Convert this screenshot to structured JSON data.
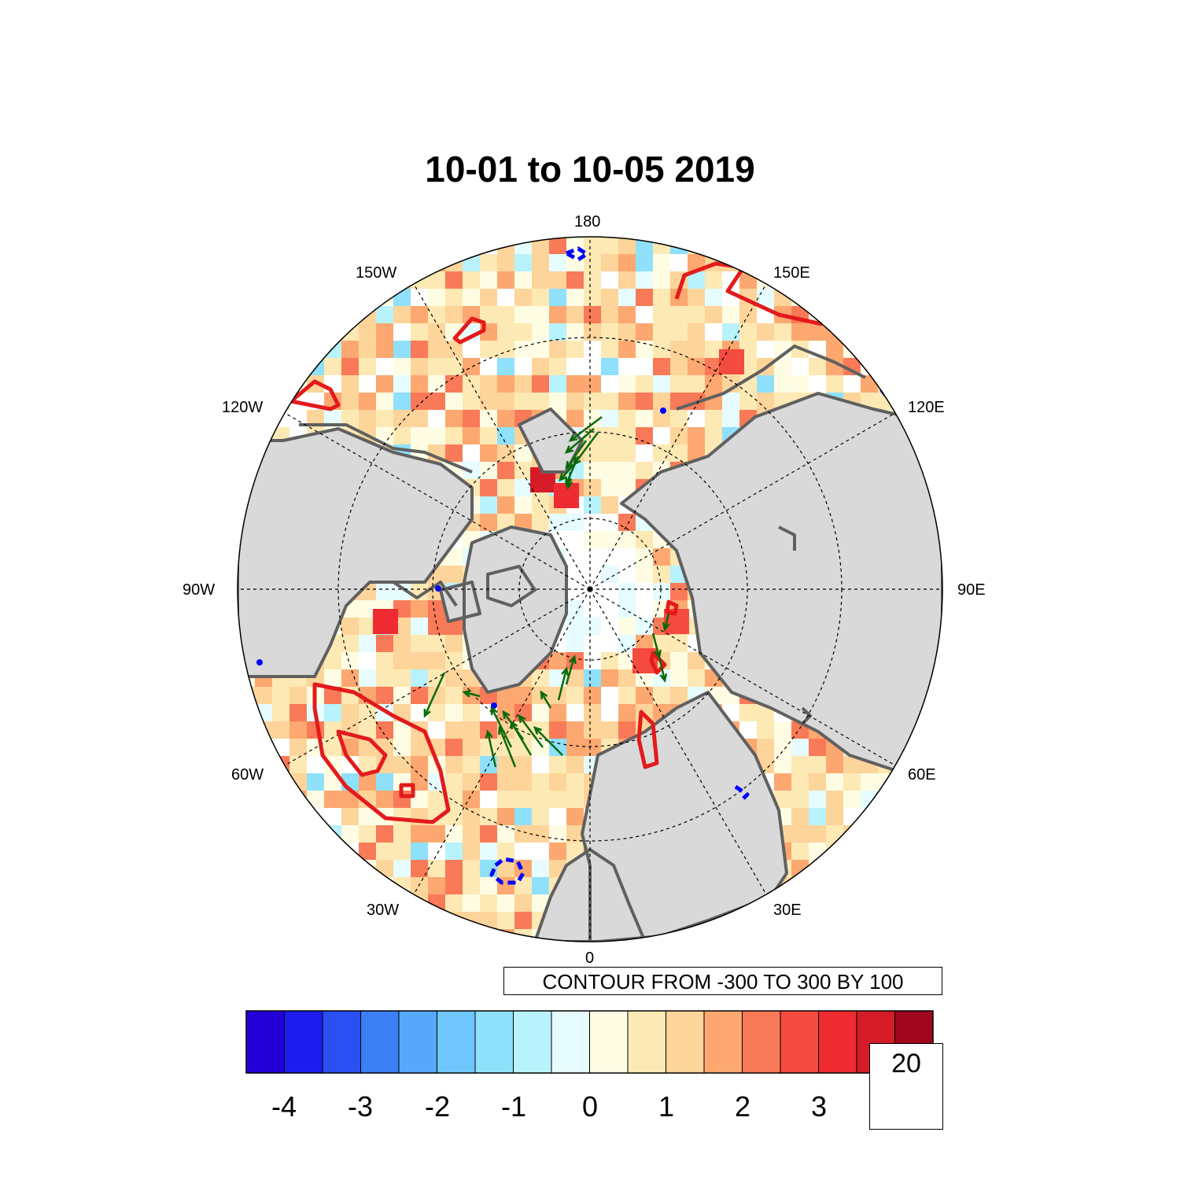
{
  "title": "10-01 to 10-05 2019",
  "map": {
    "projection": "north polar stereographic",
    "longitude_labels": [
      "180",
      "150E",
      "120E",
      "90E",
      "60E",
      "30E",
      "0",
      "30W",
      "60W",
      "90W",
      "120W",
      "150W"
    ],
    "land_fill_color": "#d9d9d9",
    "coastline_color": "#606060",
    "grid": "dashed lat/lon lines",
    "positive_contour_color": "#e31a1c",
    "negative_contour_color": "#0000ff",
    "vector_color": "#0a6a0a"
  },
  "contour_info": "CONTOUR FROM -300 TO 300 BY 100",
  "colorbar": {
    "colors": [
      "#2400d8",
      "#1c1cf0",
      "#2a50f4",
      "#3c7ef4",
      "#55a8fa",
      "#6fc6fa",
      "#8fe0fb",
      "#b8f2fc",
      "#e6fcfe",
      "#fefde4",
      "#fde9b4",
      "#fdd49a",
      "#fca870",
      "#f97a58",
      "#f44a40",
      "#ee2b30",
      "#d41c28",
      "#a0051e"
    ],
    "tick_labels": [
      "-4",
      "-3",
      "-2",
      "-1",
      "0",
      "1",
      "2",
      "3"
    ]
  },
  "reference_vector": {
    "value": "20",
    "color": "#0a6a0a"
  }
}
